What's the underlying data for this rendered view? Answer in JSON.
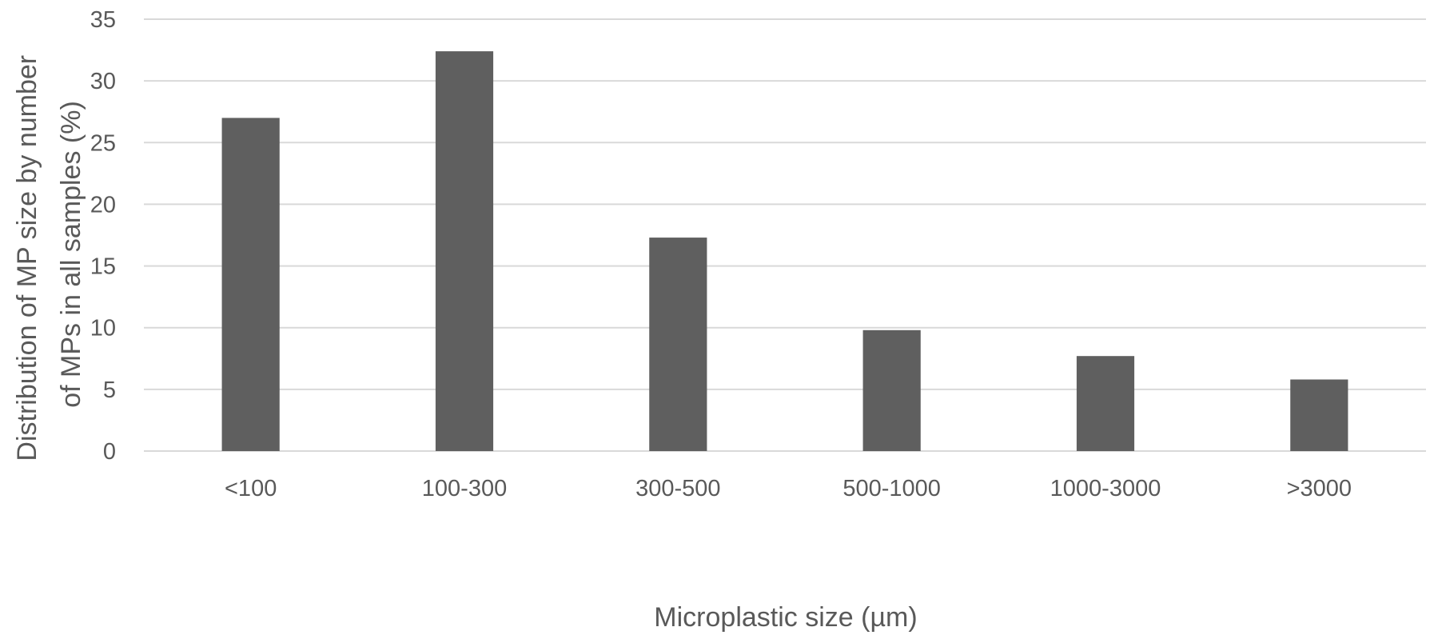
{
  "chart_data": {
    "type": "bar",
    "title": "",
    "categories": [
      "<100",
      "100-300",
      "300-500",
      "500-1000",
      "1000-3000",
      ">3000"
    ],
    "values": [
      27.0,
      32.4,
      17.3,
      9.8,
      7.7,
      5.8
    ],
    "xlabel": "Microplastic size (µm)",
    "ylabel_lines": [
      "Distribution of MP size by number",
      "of MPs in all samples (%)"
    ],
    "ylim": [
      0,
      35
    ],
    "yticks": [
      0,
      5,
      10,
      15,
      20,
      25,
      30,
      35
    ],
    "grid": true,
    "legend": "none",
    "colors": {
      "bar": "#5f5f5f",
      "grid": "#d9d9d9",
      "text": "#595959",
      "background": "#ffffff"
    }
  }
}
